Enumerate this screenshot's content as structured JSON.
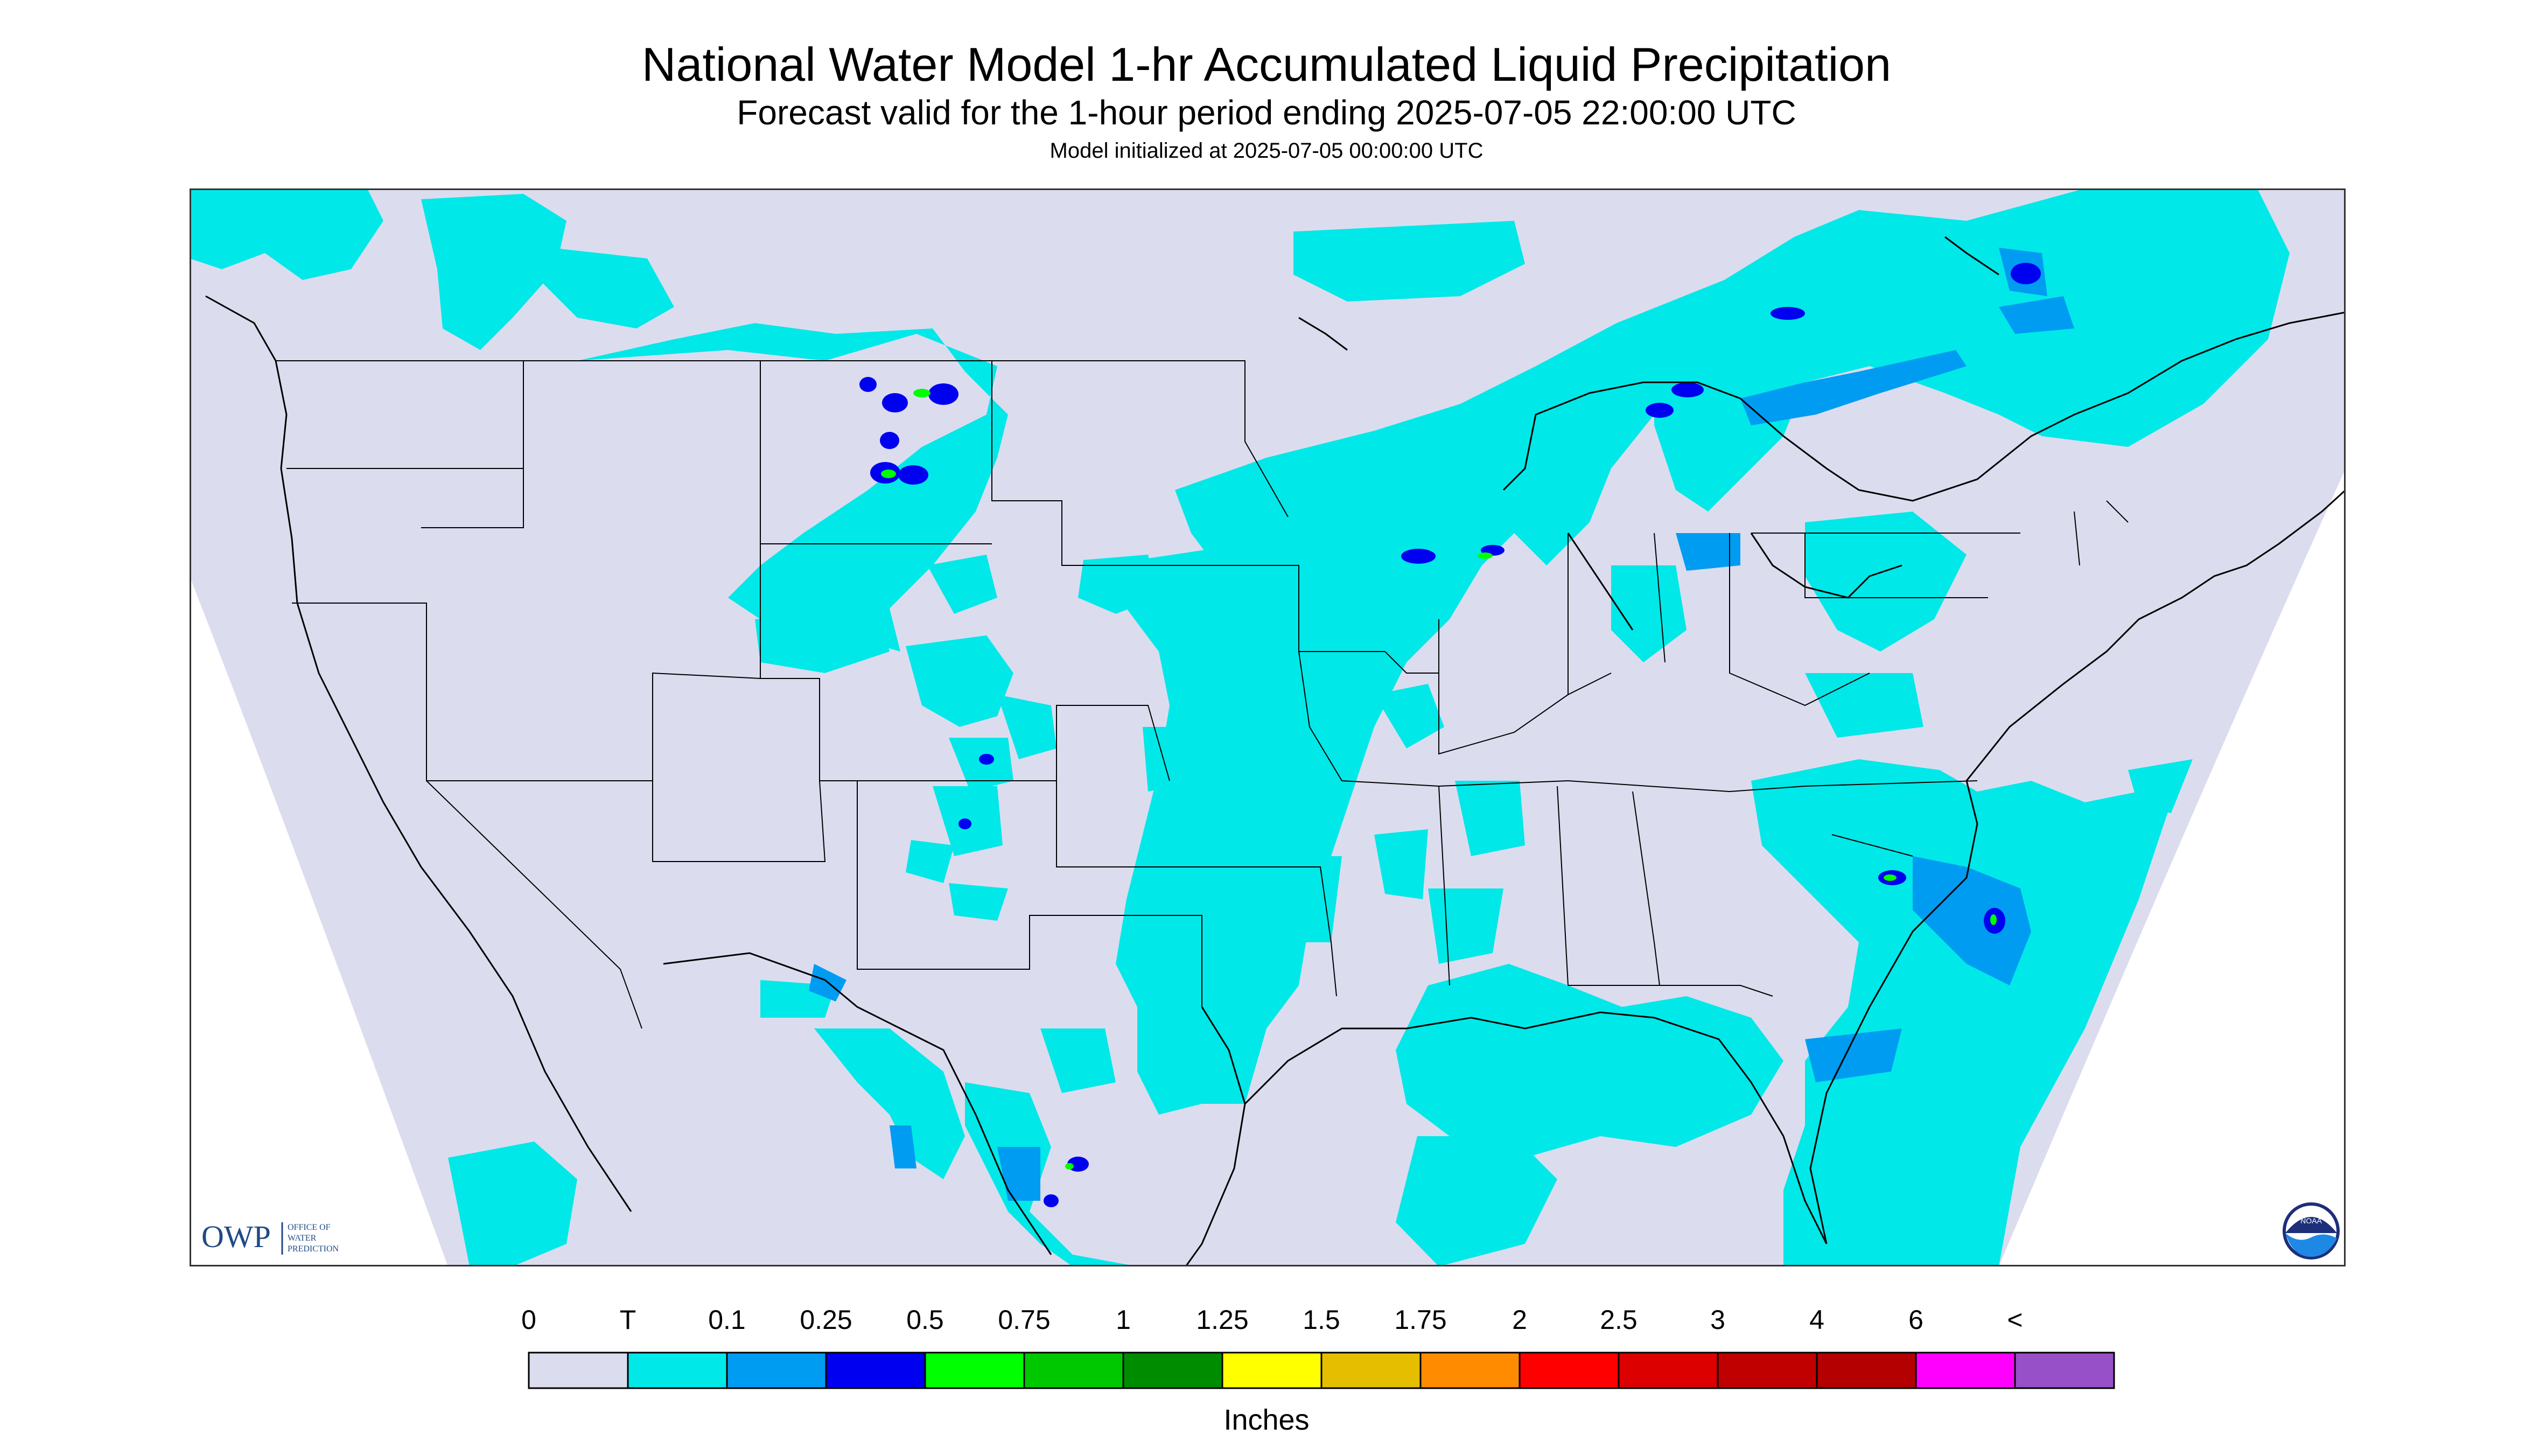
{
  "header": {
    "title": "National Water Model 1-hr Accumulated Liquid Precipitation",
    "subtitle": "Forecast valid for the 1-hour period ending 2025-07-05 22:00:00 UTC",
    "init": "Model initialized at 2025-07-05 00:00:00 UTC"
  },
  "logos": {
    "owp_acronym": "OWP",
    "owp_line1": "OFFICE OF",
    "owp_line2": "WATER",
    "owp_line3": "PREDICTION",
    "noaa": "NOAA"
  },
  "legend": {
    "units": "Inches",
    "labels": [
      "0",
      "T",
      "0.1",
      "0.25",
      "0.5",
      "0.75",
      "1",
      "1.25",
      "1.5",
      "1.75",
      "2",
      "2.5",
      "3",
      "4",
      "6",
      "<"
    ],
    "colors": [
      "#dcdcef",
      "#00e8e8",
      "#009cf2",
      "#0000f0",
      "#00ff00",
      "#00c800",
      "#008c00",
      "#ffff00",
      "#e6be00",
      "#ff8c00",
      "#ff0000",
      "#dc0000",
      "#c00000",
      "#b40000",
      "#ff00ff",
      "#9850c8"
    ]
  },
  "colors": {
    "background": "#ffffff",
    "no_precip": "#dcdcef",
    "trace": "#00e8e8",
    "light": "#009cf2",
    "moderate": "#0000f0",
    "heavy": "#00ff00",
    "border_lines": "#000000"
  }
}
